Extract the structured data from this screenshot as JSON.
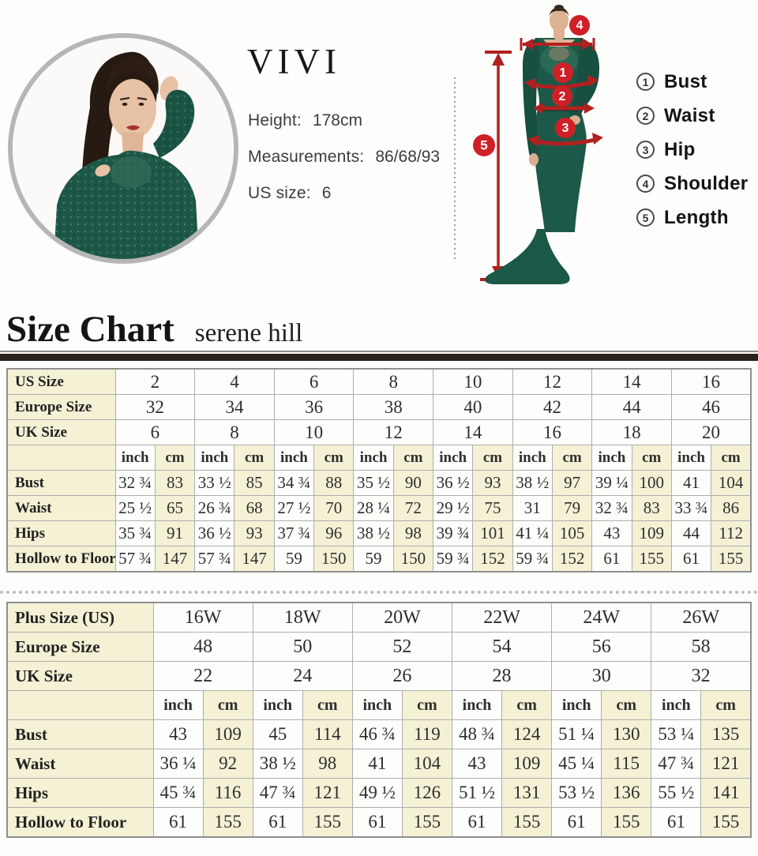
{
  "model": {
    "name": "VIVI",
    "info": [
      {
        "label": "Height:",
        "value": "178cm"
      },
      {
        "label": "Measurements:",
        "value": "86/68/93"
      },
      {
        "label": "US size:",
        "value": "6"
      }
    ]
  },
  "diagram": {
    "legend": [
      {
        "num": "1",
        "label": "Bust"
      },
      {
        "num": "2",
        "label": "Waist"
      },
      {
        "num": "3",
        "label": "Hip"
      },
      {
        "num": "4",
        "label": "Shoulder"
      },
      {
        "num": "5",
        "label": "Length"
      }
    ]
  },
  "heading": {
    "title": "Size Chart",
    "brand": "serene hill"
  },
  "colors": {
    "accent_red": "#ce2026",
    "arrow_red": "#b22020",
    "dress_green": "#1d5948",
    "cell_yellow": "#f4f1d5",
    "bar_dark": "#2b211d"
  },
  "tables": [
    {
      "name": "standard",
      "size_rows": [
        {
          "label": "US Size",
          "values": [
            "2",
            "4",
            "6",
            "8",
            "10",
            "12",
            "14",
            "16"
          ]
        },
        {
          "label": "Europe Size",
          "values": [
            "32",
            "34",
            "36",
            "38",
            "40",
            "42",
            "44",
            "46"
          ]
        },
        {
          "label": "UK Size",
          "values": [
            "6",
            "8",
            "10",
            "12",
            "14",
            "16",
            "18",
            "20"
          ]
        }
      ],
      "units": [
        "inch",
        "cm"
      ],
      "measure_rows": [
        {
          "label": "Bust",
          "cells": [
            [
              "32 ¾",
              "83"
            ],
            [
              "33 ½",
              "85"
            ],
            [
              "34 ¾",
              "88"
            ],
            [
              "35 ½",
              "90"
            ],
            [
              "36 ½",
              "93"
            ],
            [
              "38 ½",
              "97"
            ],
            [
              "39 ¼",
              "100"
            ],
            [
              "41",
              "104"
            ]
          ]
        },
        {
          "label": "Waist",
          "cells": [
            [
              "25 ½",
              "65"
            ],
            [
              "26 ¾",
              "68"
            ],
            [
              "27 ½",
              "70"
            ],
            [
              "28 ¼",
              "72"
            ],
            [
              "29 ½",
              "75"
            ],
            [
              "31",
              "79"
            ],
            [
              "32 ¾",
              "83"
            ],
            [
              "33 ¾",
              "86"
            ]
          ]
        },
        {
          "label": "Hips",
          "cells": [
            [
              "35 ¾",
              "91"
            ],
            [
              "36 ½",
              "93"
            ],
            [
              "37 ¾",
              "96"
            ],
            [
              "38 ½",
              "98"
            ],
            [
              "39 ¾",
              "101"
            ],
            [
              "41 ¼",
              "105"
            ],
            [
              "43",
              "109"
            ],
            [
              "44",
              "112"
            ]
          ]
        },
        {
          "label": "Hollow to Floor",
          "cells": [
            [
              "57 ¾",
              "147"
            ],
            [
              "57 ¾",
              "147"
            ],
            [
              "59",
              "150"
            ],
            [
              "59",
              "150"
            ],
            [
              "59 ¾",
              "152"
            ],
            [
              "59 ¾",
              "152"
            ],
            [
              "61",
              "155"
            ],
            [
              "61",
              "155"
            ]
          ]
        }
      ]
    },
    {
      "name": "plus",
      "size_rows": [
        {
          "label": "Plus Size (US)",
          "values": [
            "16W",
            "18W",
            "20W",
            "22W",
            "24W",
            "26W"
          ]
        },
        {
          "label": "Europe Size",
          "values": [
            "48",
            "50",
            "52",
            "54",
            "56",
            "58"
          ]
        },
        {
          "label": "UK Size",
          "values": [
            "22",
            "24",
            "26",
            "28",
            "30",
            "32"
          ]
        }
      ],
      "units": [
        "inch",
        "cm"
      ],
      "measure_rows": [
        {
          "label": "Bust",
          "cells": [
            [
              "43",
              "109"
            ],
            [
              "45",
              "114"
            ],
            [
              "46 ¾",
              "119"
            ],
            [
              "48 ¾",
              "124"
            ],
            [
              "51 ¼",
              "130"
            ],
            [
              "53 ¼",
              "135"
            ]
          ]
        },
        {
          "label": "Waist",
          "cells": [
            [
              "36 ¼",
              "92"
            ],
            [
              "38 ½",
              "98"
            ],
            [
              "41",
              "104"
            ],
            [
              "43",
              "109"
            ],
            [
              "45 ¼",
              "115"
            ],
            [
              "47 ¾",
              "121"
            ]
          ]
        },
        {
          "label": "Hips",
          "cells": [
            [
              "45 ¾",
              "116"
            ],
            [
              "47 ¾",
              "121"
            ],
            [
              "49 ½",
              "126"
            ],
            [
              "51 ½",
              "131"
            ],
            [
              "53 ½",
              "136"
            ],
            [
              "55 ½",
              "141"
            ]
          ]
        },
        {
          "label": "Hollow to Floor",
          "cells": [
            [
              "61",
              "155"
            ],
            [
              "61",
              "155"
            ],
            [
              "61",
              "155"
            ],
            [
              "61",
              "155"
            ],
            [
              "61",
              "155"
            ],
            [
              "61",
              "155"
            ]
          ]
        }
      ]
    }
  ]
}
